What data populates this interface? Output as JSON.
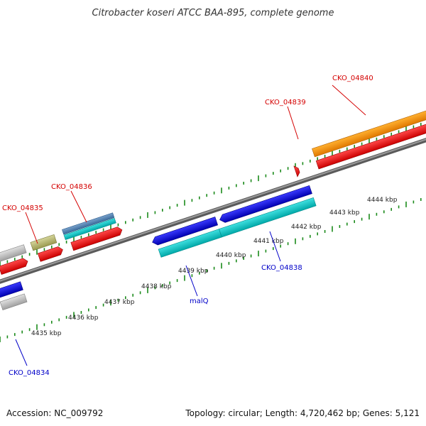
{
  "title": "Citrobacter koseri ATCC BAA-895, complete genome",
  "footer": {
    "accession": "Accession: NC_009792",
    "summary": "Topology: circular; Length: 4,720,462 bp; Genes: 5,121"
  },
  "scale_labels": [
    "4435 kbp",
    "4436 kbp",
    "4437 kbp",
    "4438 kbp",
    "4439 kbp",
    "4440 kbp",
    "4441 kbp",
    "4442 kbp",
    "4443 kbp",
    "4444 kbp"
  ],
  "gene_labels": {
    "cko_04834": "CKO_04834",
    "cko_04835": "CKO_04835",
    "cko_04836": "CKO_04836",
    "malq": "malQ",
    "cko_04838": "CKO_04838",
    "cko_04839": "CKO_04839",
    "cko_04840": "CKO_04840"
  },
  "colors": {
    "backbone": "#808080",
    "cds": "#ff0000",
    "gene_blue": "#0000e6",
    "gene_cyan": "#00c8c8",
    "gene_orange": "#ff9900",
    "gene_gray": "#c0c0c0",
    "gene_olive": "#b8b870",
    "gene_steel": "#5080b0",
    "tick": "#1a8a1a",
    "forward_label": "#d40000",
    "reverse_label": "#0000c8"
  }
}
